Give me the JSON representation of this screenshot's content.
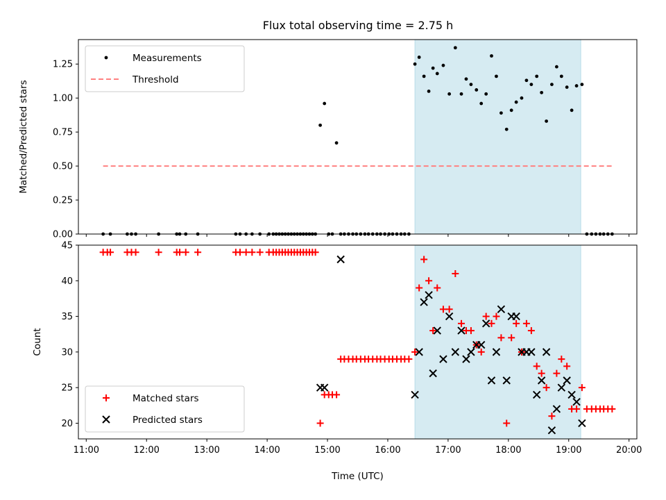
{
  "title": "Flux total observing time = 2.75 h",
  "shade_color": "#add8e6",
  "chart_data": [
    {
      "type": "scatter",
      "ylabel": "Matched/Predicted stars",
      "xlabel": "",
      "xlim": [
        10.87,
        20.13
      ],
      "ylim": [
        0,
        1.43
      ],
      "yticks": [
        0.0,
        0.25,
        0.5,
        0.75,
        1.0,
        1.25
      ],
      "ytick_labels": [
        "0.00",
        "0.25",
        "0.50",
        "0.75",
        "1.00",
        "1.25"
      ],
      "grid": false,
      "legend": "upper-left",
      "shaded_span": [
        16.45,
        19.2
      ],
      "series": [
        {
          "name": "Measurements",
          "color": "#000000",
          "marker": "dot",
          "x": [
            11.28,
            11.4,
            11.68,
            11.75,
            11.82,
            12.2,
            12.5,
            12.55,
            12.65,
            12.85,
            13.48,
            13.55,
            13.65,
            13.75,
            13.88,
            14.03,
            14.1,
            14.15,
            14.2,
            14.25,
            14.3,
            14.35,
            14.4,
            14.45,
            14.5,
            14.55,
            14.6,
            14.65,
            14.7,
            14.75,
            14.8,
            14.88,
            14.95,
            15.02,
            15.08,
            15.15,
            15.22,
            15.28,
            15.35,
            15.42,
            15.48,
            15.55,
            15.62,
            15.68,
            15.75,
            15.82,
            15.88,
            15.95,
            16.02,
            16.08,
            16.15,
            16.22,
            16.28,
            16.35,
            16.45,
            16.52,
            16.6,
            16.68,
            16.75,
            16.82,
            16.92,
            17.02,
            17.12,
            17.22,
            17.3,
            17.38,
            17.47,
            17.55,
            17.63,
            17.72,
            17.8,
            17.88,
            17.97,
            18.05,
            18.13,
            18.22,
            18.3,
            18.38,
            18.47,
            18.55,
            18.63,
            18.72,
            18.8,
            18.88,
            18.97,
            19.05,
            19.13,
            19.22,
            19.3,
            19.38,
            19.45,
            19.52,
            19.58,
            19.65,
            19.72
          ],
          "y": [
            0,
            0,
            0,
            0,
            0,
            0,
            0,
            0,
            0,
            0,
            0,
            0,
            0,
            0,
            0,
            0,
            0,
            0,
            0,
            0,
            0,
            0,
            0,
            0,
            0,
            0,
            0,
            0,
            0,
            0,
            0,
            0.8,
            0.96,
            0,
            0,
            0.67,
            0,
            0,
            0,
            0,
            0,
            0,
            0,
            0,
            0,
            0,
            0,
            0,
            0,
            0,
            0,
            0,
            0,
            0,
            1.25,
            1.3,
            1.16,
            1.05,
            1.22,
            1.18,
            1.24,
            1.03,
            1.37,
            1.03,
            1.14,
            1.1,
            1.06,
            0.96,
            1.03,
            1.31,
            1.16,
            0.89,
            0.77,
            0.91,
            0.97,
            1.0,
            1.13,
            1.1,
            1.16,
            1.04,
            0.83,
            1.1,
            1.23,
            1.16,
            1.08,
            0.91,
            1.09,
            1.1,
            0,
            0,
            0,
            0,
            0,
            0,
            0
          ]
        },
        {
          "name": "Threshold",
          "color": "#ff8080",
          "style": "dashed",
          "x": [
            11.28,
            19.72
          ],
          "y": [
            0.5,
            0.5
          ]
        }
      ]
    },
    {
      "type": "scatter",
      "ylabel": "Count",
      "xlabel": "Time (UTC)",
      "xlim": [
        10.87,
        20.13
      ],
      "ylim": [
        17.8,
        45
      ],
      "yticks": [
        20,
        25,
        30,
        35,
        40,
        45
      ],
      "ytick_labels": [
        "20",
        "25",
        "30",
        "35",
        "40",
        "45"
      ],
      "xticks": [
        11,
        12,
        13,
        14,
        15,
        16,
        17,
        18,
        19,
        20
      ],
      "xtick_labels": [
        "11:00",
        "12:00",
        "13:00",
        "14:00",
        "15:00",
        "16:00",
        "17:00",
        "18:00",
        "19:00",
        "20:00"
      ],
      "grid": false,
      "legend": "lower-left",
      "shaded_span": [
        16.45,
        19.2
      ],
      "series": [
        {
          "name": "Matched stars",
          "color": "#ff0000",
          "marker": "plus",
          "x": [
            11.28,
            11.35,
            11.4,
            11.68,
            11.75,
            11.82,
            12.2,
            12.5,
            12.55,
            12.65,
            12.85,
            13.48,
            13.55,
            13.65,
            13.75,
            13.88,
            14.03,
            14.1,
            14.15,
            14.2,
            14.25,
            14.3,
            14.35,
            14.4,
            14.45,
            14.5,
            14.55,
            14.6,
            14.65,
            14.7,
            14.75,
            14.8,
            14.88,
            14.95,
            15.02,
            15.08,
            15.15,
            15.22,
            15.28,
            15.35,
            15.42,
            15.48,
            15.55,
            15.62,
            15.68,
            15.75,
            15.82,
            15.88,
            15.95,
            16.02,
            16.08,
            16.15,
            16.22,
            16.28,
            16.35,
            16.45,
            16.52,
            16.6,
            16.68,
            16.75,
            16.82,
            16.92,
            17.02,
            17.12,
            17.22,
            17.3,
            17.38,
            17.47,
            17.55,
            17.63,
            17.72,
            17.8,
            17.88,
            17.97,
            18.05,
            18.13,
            18.22,
            18.3,
            18.38,
            18.47,
            18.55,
            18.63,
            18.72,
            18.8,
            18.88,
            18.97,
            19.05,
            19.13,
            19.22,
            19.3,
            19.38,
            19.45,
            19.52,
            19.58,
            19.65,
            19.72
          ],
          "y": [
            44,
            44,
            44,
            44,
            44,
            44,
            44,
            44,
            44,
            44,
            44,
            44,
            44,
            44,
            44,
            44,
            44,
            44,
            44,
            44,
            44,
            44,
            44,
            44,
            44,
            44,
            44,
            44,
            44,
            44,
            44,
            44,
            20,
            24,
            24,
            24,
            24,
            29,
            29,
            29,
            29,
            29,
            29,
            29,
            29,
            29,
            29,
            29,
            29,
            29,
            29,
            29,
            29,
            29,
            29,
            30,
            39,
            43,
            40,
            33,
            39,
            36,
            36,
            41,
            34,
            33,
            33,
            31,
            30,
            35,
            34,
            35,
            32,
            20,
            32,
            34,
            30,
            34,
            33,
            28,
            27,
            25,
            21,
            27,
            29,
            28,
            22,
            22,
            25,
            22,
            22,
            22,
            22,
            22,
            22,
            22
          ]
        },
        {
          "name": "Predicted stars",
          "color": "#000000",
          "marker": "x",
          "x": [
            14.88,
            14.95,
            15.22,
            16.45,
            16.52,
            16.6,
            16.68,
            16.75,
            16.82,
            16.92,
            17.02,
            17.12,
            17.22,
            17.3,
            17.38,
            17.47,
            17.55,
            17.63,
            17.72,
            17.8,
            17.88,
            17.97,
            18.05,
            18.13,
            18.22,
            18.3,
            18.38,
            18.47,
            18.55,
            18.63,
            18.72,
            18.8,
            18.88,
            18.97,
            19.05,
            19.13,
            19.22
          ],
          "y": [
            25,
            25,
            43,
            24,
            30,
            37,
            38,
            27,
            33,
            29,
            35,
            30,
            33,
            29,
            30,
            31,
            31,
            34,
            26,
            30,
            36,
            26,
            35,
            35,
            30,
            30,
            30,
            24,
            26,
            30,
            19,
            22,
            25,
            26,
            24,
            23,
            20
          ]
        }
      ]
    }
  ]
}
